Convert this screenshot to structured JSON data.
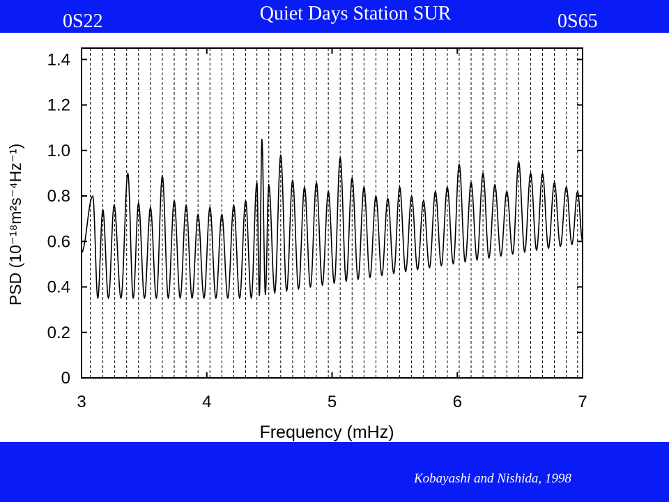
{
  "header": {
    "title": "Quiet Days Station SUR",
    "left_mode": "0S22",
    "right_mode": "0S65",
    "band_color": "#0a1cf5"
  },
  "footer": {
    "citation": "Kobayashi and Nishida, 1998"
  },
  "chart_data": {
    "type": "line",
    "xlabel": "Frequency (mHz)",
    "ylabel": "PSD (10⁻¹⁸m²s⁻⁴Hz⁻¹)",
    "xlim": [
      3,
      7
    ],
    "ylim": [
      0,
      1.45
    ],
    "x_ticks": [
      "3",
      "4",
      "5",
      "6",
      "7"
    ],
    "y_ticks": [
      "0",
      "0.2",
      "0.4",
      "0.6",
      "0.8",
      "1.0",
      "1.2",
      "1.4"
    ],
    "grid": false,
    "legend": "none",
    "mode_lines": {
      "style": "dashed",
      "x": [
        3.07,
        3.17,
        3.265,
        3.36,
        3.455,
        3.55,
        3.645,
        3.74,
        3.835,
        3.93,
        4.025,
        4.12,
        4.215,
        4.31,
        4.4,
        4.495,
        4.59,
        4.685,
        4.78,
        4.875,
        4.97,
        5.065,
        5.16,
        5.255,
        5.35,
        5.445,
        5.54,
        5.635,
        5.73,
        5.825,
        5.92,
        6.015,
        6.11,
        6.205,
        6.3,
        6.395,
        6.49,
        6.585,
        6.68,
        6.775,
        6.87,
        6.96
      ]
    },
    "series": [
      {
        "color": "#000000",
        "peaks": [
          {
            "x": 3.09,
            "y": 0.8
          },
          {
            "x": 3.17,
            "y": 0.74
          },
          {
            "x": 3.26,
            "y": 0.76
          },
          {
            "x": 3.37,
            "y": 0.9
          },
          {
            "x": 3.455,
            "y": 0.77
          },
          {
            "x": 3.55,
            "y": 0.75
          },
          {
            "x": 3.645,
            "y": 0.89
          },
          {
            "x": 3.74,
            "y": 0.78
          },
          {
            "x": 3.835,
            "y": 0.76
          },
          {
            "x": 3.93,
            "y": 0.72
          },
          {
            "x": 4.025,
            "y": 0.75
          },
          {
            "x": 4.12,
            "y": 0.72
          },
          {
            "x": 4.215,
            "y": 0.76
          },
          {
            "x": 4.31,
            "y": 0.78
          },
          {
            "x": 4.4,
            "y": 0.86
          },
          {
            "x": 4.44,
            "y": 1.05
          },
          {
            "x": 4.495,
            "y": 0.85
          },
          {
            "x": 4.59,
            "y": 0.98
          },
          {
            "x": 4.685,
            "y": 0.87
          },
          {
            "x": 4.78,
            "y": 0.84
          },
          {
            "x": 4.875,
            "y": 0.86
          },
          {
            "x": 4.97,
            "y": 0.82
          },
          {
            "x": 5.065,
            "y": 0.97
          },
          {
            "x": 5.16,
            "y": 0.88
          },
          {
            "x": 5.255,
            "y": 0.84
          },
          {
            "x": 5.35,
            "y": 0.8
          },
          {
            "x": 5.445,
            "y": 0.79
          },
          {
            "x": 5.54,
            "y": 0.84
          },
          {
            "x": 5.635,
            "y": 0.8
          },
          {
            "x": 5.73,
            "y": 0.78
          },
          {
            "x": 5.825,
            "y": 0.82
          },
          {
            "x": 5.92,
            "y": 0.84
          },
          {
            "x": 6.015,
            "y": 0.94
          },
          {
            "x": 6.11,
            "y": 0.86
          },
          {
            "x": 6.205,
            "y": 0.9
          },
          {
            "x": 6.3,
            "y": 0.85
          },
          {
            "x": 6.395,
            "y": 0.82
          },
          {
            "x": 6.49,
            "y": 0.95
          },
          {
            "x": 6.585,
            "y": 0.9
          },
          {
            "x": 6.68,
            "y": 0.9
          },
          {
            "x": 6.775,
            "y": 0.86
          },
          {
            "x": 6.87,
            "y": 0.84
          },
          {
            "x": 6.96,
            "y": 0.82
          }
        ]
      }
    ]
  }
}
